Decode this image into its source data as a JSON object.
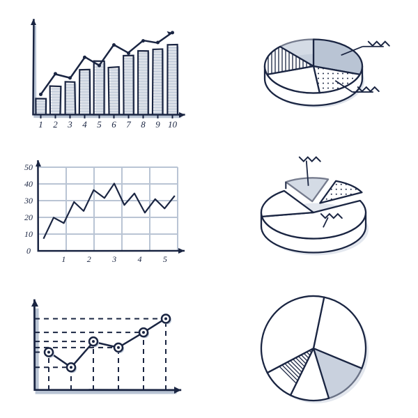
{
  "palette": {
    "ink": "#1a2542",
    "shadow": "#b9c4d4",
    "bg": "#ffffff"
  },
  "handwriting_font": "Georgia, cursive",
  "bar_chart": {
    "type": "bar-with-line",
    "x_labels": [
      "1",
      "2",
      "3",
      "4",
      "5",
      "6",
      "7",
      "8",
      "9",
      "10"
    ],
    "bar_values": [
      20,
      35,
      40,
      55,
      65,
      58,
      72,
      78,
      80,
      85
    ],
    "line_values": [
      25,
      50,
      45,
      70,
      60,
      85,
      75,
      90,
      88,
      100
    ],
    "ylim": [
      0,
      110
    ],
    "bar_width": 0.7,
    "stroke_width": 2.2,
    "hatch_color": "#b9c4d4",
    "axis_color": "#1a2542"
  },
  "pie_3d_top": {
    "type": "3d-pie",
    "slices": [
      {
        "frac": 0.3,
        "fill": "solid",
        "label": "scribble"
      },
      {
        "frac": 0.18,
        "fill": "dots",
        "label": "scribble"
      },
      {
        "frac": 0.22,
        "fill": "white"
      },
      {
        "frac": 0.18,
        "fill": "vstripe"
      },
      {
        "frac": 0.12,
        "fill": "solid-light"
      }
    ],
    "depth": 18,
    "radius": 70,
    "squash": 0.55
  },
  "line_chart": {
    "type": "line",
    "y_labels": [
      "0",
      "10",
      "20",
      "30",
      "40",
      "50"
    ],
    "x_labels": [
      "1",
      "2",
      "3",
      "4",
      "5"
    ],
    "ylim": [
      0,
      55
    ],
    "xlim": [
      0,
      5.5
    ],
    "grid_color": "#b9c4d4",
    "stroke_width": 2.2,
    "points": [
      [
        0.2,
        8
      ],
      [
        0.6,
        22
      ],
      [
        1.0,
        18
      ],
      [
        1.4,
        32
      ],
      [
        1.8,
        26
      ],
      [
        2.2,
        40
      ],
      [
        2.6,
        35
      ],
      [
        3.0,
        44
      ],
      [
        3.4,
        30
      ],
      [
        3.8,
        38
      ],
      [
        4.2,
        25
      ],
      [
        4.6,
        34
      ],
      [
        5.0,
        28
      ],
      [
        5.4,
        36
      ]
    ]
  },
  "pie_3d_mid": {
    "type": "3d-pie-exploded",
    "slices": [
      {
        "frac": 0.55,
        "fill": "white",
        "label": "scribble"
      },
      {
        "frac": 0.18,
        "fill": "white"
      },
      {
        "frac": 0.15,
        "fill": "solid-light",
        "exploded": true,
        "label": "scribble"
      },
      {
        "frac": 0.12,
        "fill": "dots",
        "exploded": true
      }
    ],
    "depth": 20,
    "radius": 75,
    "squash": 0.5
  },
  "dot_line": {
    "type": "scatter-line",
    "points": [
      [
        0.5,
        25
      ],
      [
        1.3,
        15
      ],
      [
        2.1,
        32
      ],
      [
        3.0,
        28
      ],
      [
        3.9,
        38
      ],
      [
        4.7,
        47
      ]
    ],
    "marker_radius": 6,
    "dashed_guides": true,
    "xlim": [
      0,
      5
    ],
    "ylim": [
      0,
      55
    ],
    "stroke_width": 2.5
  },
  "pie_flat": {
    "type": "pie",
    "slices": [
      {
        "frac": 0.28,
        "fill": "white"
      },
      {
        "frac": 0.14,
        "fill": "solid-light"
      },
      {
        "frac": 0.12,
        "fill": "white"
      },
      {
        "frac": 0.1,
        "fill": "diag"
      },
      {
        "frac": 0.36,
        "fill": "white"
      }
    ],
    "radius": 75,
    "stroke_width": 2.5
  }
}
